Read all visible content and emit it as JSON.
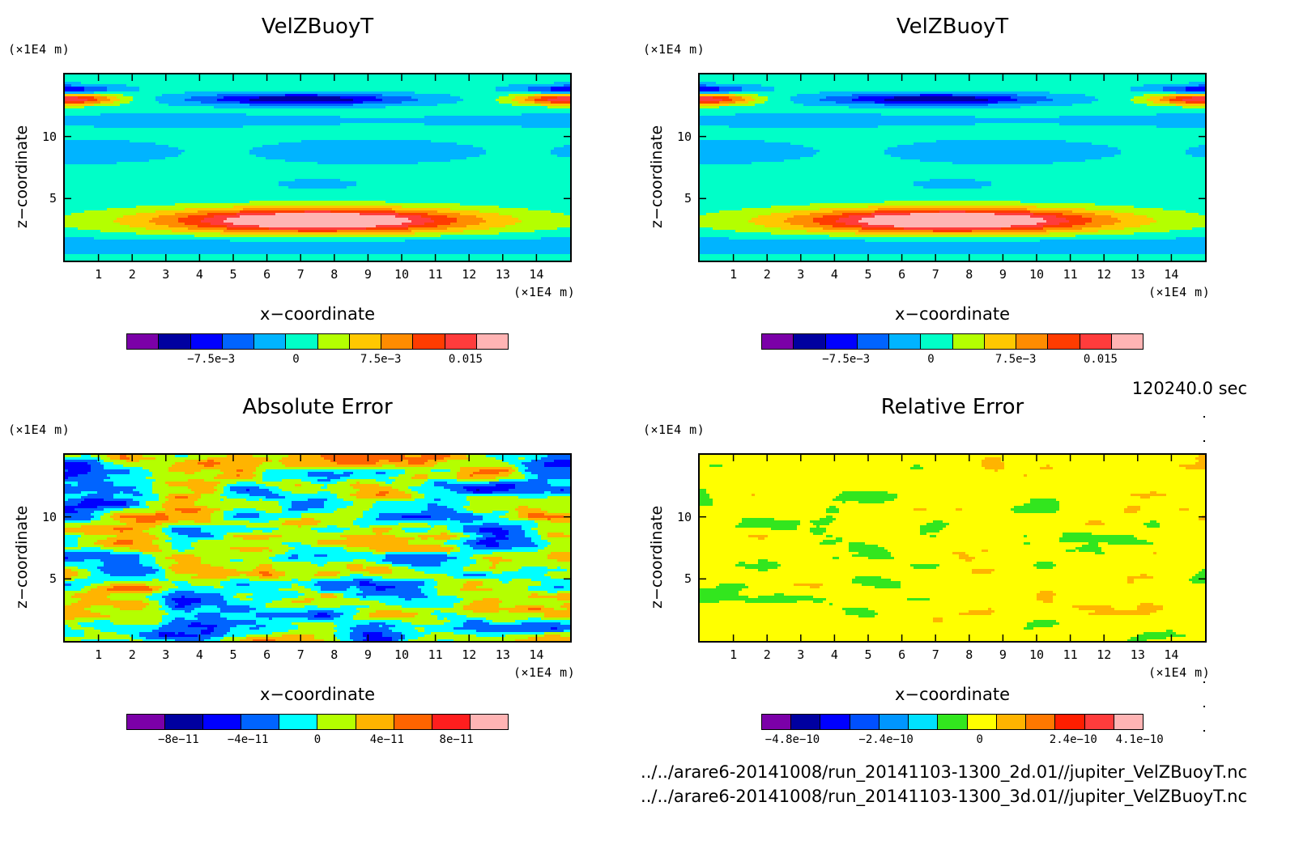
{
  "timestamp": "120240.0 sec",
  "footer": {
    "line1": "../../arare6-20141008/run_20141103-1300_2d.01//jupiter_VelZBuoyT.nc",
    "line2": "../../arare6-20141008/run_20141103-1300_3d.01//jupiter_VelZBuoyT.nc"
  },
  "chart_data": [
    {
      "type": "heatmap",
      "title": "VelZBuoyT",
      "xlabel": "x−coordinate",
      "ylabel": "z−coordinate",
      "x_unit": "(×1E4 m)",
      "y_unit": "(×1E4 m)",
      "xlim": [
        0,
        15
      ],
      "ylim": [
        0,
        15
      ],
      "x_ticks": [
        "1",
        "2",
        "3",
        "4",
        "5",
        "6",
        "7",
        "8",
        "9",
        "10",
        "11",
        "12",
        "13",
        "14"
      ],
      "y_ticks": [
        "5",
        "10"
      ],
      "colorbar": {
        "colors": [
          "#7b00a8",
          "#0000a0",
          "#0000ff",
          "#0064ff",
          "#00b4ff",
          "#00ffc8",
          "#b4ff00",
          "#ffc800",
          "#ff8c00",
          "#ff3c00",
          "#ff3c3c",
          "#ffb4b4"
        ],
        "labels": [
          "−7.5e−3",
          "0",
          "7.5e−3",
          "0.015"
        ],
        "label_values": [
          -0.0075,
          0,
          0.0075,
          0.015
        ],
        "range": [
          -0.015,
          0.0188
        ]
      }
    },
    {
      "type": "heatmap",
      "title": "VelZBuoyT",
      "xlabel": "x−coordinate",
      "ylabel": "z−coordinate",
      "x_unit": "(×1E4 m)",
      "y_unit": "(×1E4 m)",
      "xlim": [
        0,
        15
      ],
      "ylim": [
        0,
        15
      ],
      "x_ticks": [
        "1",
        "2",
        "3",
        "4",
        "5",
        "6",
        "7",
        "8",
        "9",
        "10",
        "11",
        "12",
        "13",
        "14"
      ],
      "y_ticks": [
        "5",
        "10"
      ],
      "colorbar": {
        "colors": [
          "#7b00a8",
          "#0000a0",
          "#0000ff",
          "#0064ff",
          "#00b4ff",
          "#00ffc8",
          "#b4ff00",
          "#ffc800",
          "#ff8c00",
          "#ff3c00",
          "#ff3c3c",
          "#ffb4b4"
        ],
        "labels": [
          "−7.5e−3",
          "0",
          "7.5e−3",
          "0.015"
        ],
        "label_values": [
          -0.0075,
          0,
          0.0075,
          0.015
        ],
        "range": [
          -0.015,
          0.0188
        ]
      }
    },
    {
      "type": "heatmap",
      "title": "Absolute Error",
      "xlabel": "x−coordinate",
      "ylabel": "z−coordinate",
      "x_unit": "(×1E4 m)",
      "y_unit": "(×1E4 m)",
      "xlim": [
        0,
        15
      ],
      "ylim": [
        0,
        15
      ],
      "x_ticks": [
        "1",
        "2",
        "3",
        "4",
        "5",
        "6",
        "7",
        "8",
        "9",
        "10",
        "11",
        "12",
        "13",
        "14"
      ],
      "y_ticks": [
        "5",
        "10"
      ],
      "colorbar": {
        "colors": [
          "#7b00a8",
          "#0000a0",
          "#0000ff",
          "#0064ff",
          "#00ffff",
          "#b4ff00",
          "#ffb400",
          "#ff6400",
          "#ff1e1e",
          "#ffb4b4"
        ],
        "labels": [
          "−8e−11",
          "−4e−11",
          "0",
          "4e−11",
          "8e−11"
        ],
        "label_values": [
          -8e-11,
          -4e-11,
          0,
          4e-11,
          8e-11
        ],
        "range": [
          -1.1e-10,
          1.1e-10
        ]
      }
    },
    {
      "type": "heatmap",
      "title": "Relative Error",
      "xlabel": "x−coordinate",
      "ylabel": "z−coordinate",
      "x_unit": "(×1E4 m)",
      "y_unit": "(×1E4 m)",
      "xlim": [
        0,
        15
      ],
      "ylim": [
        0,
        15
      ],
      "x_ticks": [
        "1",
        "2",
        "3",
        "4",
        "5",
        "6",
        "7",
        "8",
        "9",
        "10",
        "11",
        "12",
        "13",
        "14"
      ],
      "y_ticks": [
        "5",
        "10"
      ],
      "colorbar": {
        "colors": [
          "#7b00a8",
          "#0000a0",
          "#0000ff",
          "#0050ff",
          "#0096ff",
          "#00e1ff",
          "#32e61e",
          "#ffff00",
          "#ffb400",
          "#ff7800",
          "#ff1e00",
          "#ff3c3c",
          "#ffb4b4"
        ],
        "labels": [
          "−4.8e−10",
          "−2.4e−10",
          "0",
          "2.4e−10",
          "4.1e−10"
        ],
        "label_values": [
          -4.8e-10,
          -2.4e-10,
          0,
          2.4e-10,
          4.1e-10
        ],
        "range": [
          -5.6e-10,
          4.2e-10
        ]
      }
    }
  ]
}
